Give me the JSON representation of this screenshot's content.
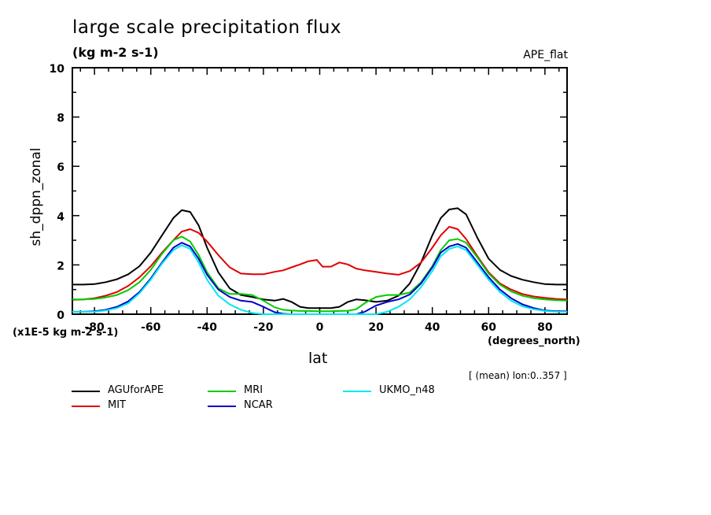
{
  "chart_data": {
    "type": "line",
    "title": "large scale precipitation flux",
    "subtitle": "(kg m-2 s-1)",
    "dataset_label": "APE_flat",
    "xlabel": "lat",
    "xunits": "(degrees_north)",
    "ylabel": "sh_dppn_zonal",
    "yscale_note": "(x1E-5 kg m-2 s-1)",
    "averaging_note": "[ (mean) lon:0..357 ]",
    "xlim": [
      -87.86,
      87.86
    ],
    "ylim": [
      0,
      10
    ],
    "x_ticks": [
      -80,
      -60,
      -40,
      -20,
      0,
      20,
      40,
      60,
      80
    ],
    "x_tick_labels": [
      "-80",
      "-60",
      "-40",
      "-20",
      "0",
      "20",
      "40",
      "60",
      "80"
    ],
    "y_ticks": [
      0,
      2,
      4,
      6,
      8,
      10
    ],
    "y_tick_labels": [
      "0",
      "2",
      "4",
      "6",
      "8",
      "10"
    ],
    "grid": false,
    "legend_position": "bottom",
    "x": [
      -87.9,
      -84,
      -80,
      -76,
      -72,
      -68,
      -64,
      -60,
      -56,
      -52,
      -49,
      -46,
      -43,
      -40,
      -36,
      -32,
      -28,
      -24,
      -20,
      -16,
      -13,
      -10,
      -7,
      -4,
      -1,
      1,
      4,
      7,
      10,
      13,
      16,
      20,
      24,
      28,
      32,
      36,
      40,
      43,
      46,
      49,
      52,
      56,
      60,
      64,
      68,
      72,
      76,
      80,
      84,
      87.9
    ],
    "series": [
      {
        "name": "AGUforAPE",
        "color": "#000000",
        "values": [
          1.2,
          1.2,
          1.22,
          1.3,
          1.42,
          1.62,
          1.95,
          2.5,
          3.2,
          3.9,
          4.22,
          4.15,
          3.6,
          2.7,
          1.7,
          1.05,
          0.78,
          0.7,
          0.6,
          0.55,
          0.62,
          0.5,
          0.3,
          0.25,
          0.25,
          0.25,
          0.25,
          0.3,
          0.5,
          0.6,
          0.57,
          0.5,
          0.55,
          0.75,
          1.25,
          2.1,
          3.2,
          3.9,
          4.25,
          4.3,
          4.05,
          3.1,
          2.25,
          1.8,
          1.55,
          1.4,
          1.3,
          1.22,
          1.2,
          1.2
        ]
      },
      {
        "name": "MIT",
        "color": "#e00000",
        "values": [
          0.58,
          0.6,
          0.65,
          0.75,
          0.9,
          1.15,
          1.5,
          1.95,
          2.5,
          3.0,
          3.35,
          3.45,
          3.3,
          2.95,
          2.4,
          1.9,
          1.65,
          1.62,
          1.62,
          1.72,
          1.78,
          1.9,
          2.02,
          2.15,
          2.2,
          1.93,
          1.93,
          2.1,
          2.02,
          1.85,
          1.78,
          1.72,
          1.65,
          1.6,
          1.75,
          2.1,
          2.7,
          3.2,
          3.55,
          3.45,
          3.05,
          2.35,
          1.7,
          1.25,
          1.0,
          0.82,
          0.72,
          0.66,
          0.62,
          0.6
        ]
      },
      {
        "name": "MRI",
        "color": "#00cc00",
        "values": [
          0.6,
          0.6,
          0.62,
          0.68,
          0.78,
          0.98,
          1.3,
          1.8,
          2.45,
          3.0,
          3.15,
          2.95,
          2.4,
          1.7,
          1.05,
          0.82,
          0.82,
          0.78,
          0.55,
          0.28,
          0.18,
          0.15,
          0.13,
          0.13,
          0.12,
          0.12,
          0.12,
          0.13,
          0.14,
          0.2,
          0.45,
          0.7,
          0.78,
          0.78,
          0.88,
          1.3,
          1.95,
          2.6,
          3.0,
          3.05,
          2.9,
          2.3,
          1.65,
          1.2,
          0.92,
          0.75,
          0.65,
          0.6,
          0.57,
          0.55
        ]
      },
      {
        "name": "NCAR",
        "color": "#0000cc",
        "values": [
          0.1,
          0.1,
          0.12,
          0.18,
          0.3,
          0.52,
          0.9,
          1.45,
          2.1,
          2.7,
          2.9,
          2.75,
          2.25,
          1.6,
          1.0,
          0.7,
          0.55,
          0.5,
          0.3,
          0.08,
          0.02,
          0.0,
          0.0,
          0.0,
          0.0,
          0.0,
          0.0,
          0.0,
          0.0,
          0.0,
          0.1,
          0.35,
          0.5,
          0.6,
          0.8,
          1.25,
          1.9,
          2.5,
          2.75,
          2.85,
          2.7,
          2.1,
          1.5,
          1.0,
          0.65,
          0.4,
          0.25,
          0.15,
          0.12,
          0.12
        ]
      },
      {
        "name": "UKMO_n48",
        "color": "#00e8f0",
        "values": [
          0.1,
          0.1,
          0.1,
          0.15,
          0.25,
          0.45,
          0.85,
          1.4,
          2.05,
          2.6,
          2.8,
          2.65,
          2.1,
          1.4,
          0.75,
          0.4,
          0.18,
          0.05,
          0.0,
          0.0,
          0.0,
          0.0,
          0.0,
          0.0,
          0.0,
          0.0,
          0.0,
          0.0,
          0.0,
          0.0,
          0.0,
          0.0,
          0.1,
          0.3,
          0.6,
          1.1,
          1.75,
          2.35,
          2.65,
          2.75,
          2.6,
          2.0,
          1.4,
          0.9,
          0.55,
          0.32,
          0.2,
          0.13,
          0.1,
          0.1
        ]
      }
    ]
  }
}
